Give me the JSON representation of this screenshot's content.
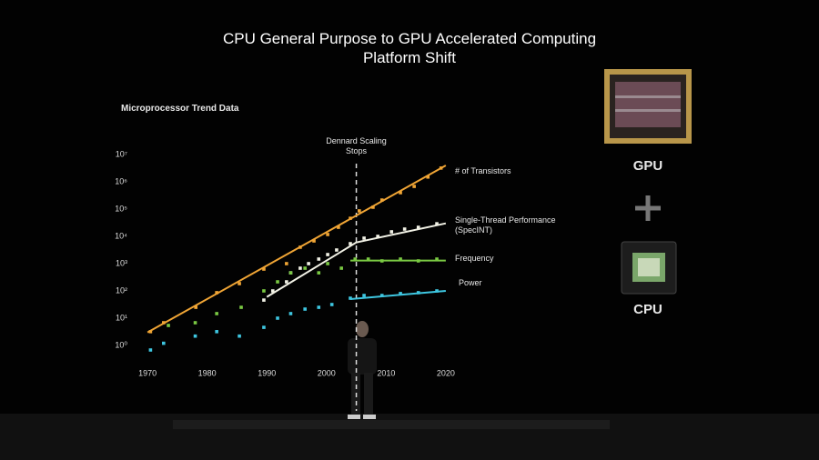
{
  "chart_data": {
    "type": "scatter",
    "title": "CPU General Purpose to GPU Accelerated Computing Platform Shift",
    "subtitle": "Microprocessor Trend Data",
    "annotation": "Dennard Scaling Stops",
    "annotation_x": 2005,
    "log_y": true,
    "xlim": [
      1968,
      2022
    ],
    "xticks": [
      1970,
      1980,
      1990,
      2000,
      2010,
      2020
    ],
    "ylim": [
      0.5,
      20000000
    ],
    "yticks": [
      {
        "value": 1,
        "label": "10⁰"
      },
      {
        "value": 10,
        "label": "10¹"
      },
      {
        "value": 100,
        "label": "10²"
      },
      {
        "value": 1000,
        "label": "10³"
      },
      {
        "value": 10000,
        "label": "10⁴"
      },
      {
        "value": 100000,
        "label": "10⁵"
      },
      {
        "value": 1000000,
        "label": "10⁶"
      },
      {
        "value": 10000000,
        "label": "10⁷"
      }
    ],
    "series": [
      {
        "name": "# of Transistors",
        "color": "#f0a535",
        "x": [
          1970.5,
          1972.7,
          1978.1,
          1981.6,
          1985.4,
          1989.5,
          1993.3,
          1995.6,
          1997.9,
          2000.2,
          2002,
          2004,
          2005.5,
          2007.8,
          2009.3,
          2012.4,
          2014.7,
          2017,
          2019.2
        ],
        "values": [
          3.2,
          6.8,
          25,
          86,
          185,
          630,
          1000,
          4000,
          6800,
          11700,
          21500,
          46000,
          86000,
          117000,
          215000,
          400000,
          680000,
          1500000,
          3200000
        ],
        "fit_x": [
          1970,
          2020
        ],
        "fit_values": [
          3,
          4000000
        ]
      },
      {
        "name": "Single-Thread Performance (SpecINT)",
        "color": "#f2f2e6",
        "x": [
          1989.5,
          1991,
          1993.3,
          1994,
          1995.6,
          1997,
          1998.7,
          2000.2,
          2001.7,
          2004,
          2006.3,
          2008.6,
          2010.9,
          2013.1,
          2015.4,
          2018.5
        ],
        "values": [
          46,
          100,
          215,
          460,
          680,
          1000,
          1470,
          2150,
          3160,
          5400,
          8600,
          10000,
          14700,
          18500,
          21500,
          29000
        ],
        "fit_x": [
          1990,
          2005,
          2020
        ],
        "fit_values": [
          60,
          6000,
          30000
        ]
      },
      {
        "name": "Frequency",
        "color": "#7ac943",
        "x": [
          1973.5,
          1978,
          1981.6,
          1985.7,
          1989.5,
          1991.8,
          1994,
          1996.4,
          1998.7,
          2000.2,
          2002.5,
          2004.8,
          2007,
          2009.3,
          2012.4,
          2015.4,
          2018.5
        ],
        "values": [
          5.4,
          6.8,
          14.7,
          25,
          100,
          215,
          460,
          680,
          460,
          1000,
          680,
          1470,
          1470,
          1260,
          1470,
          1260,
          1470
        ],
        "fit_x": [
          2004,
          2020
        ],
        "fit_values": [
          1300,
          1300
        ]
      },
      {
        "name": "Power",
        "color": "#3ec6e0",
        "x": [
          1970.5,
          1972.7,
          1978,
          1981.6,
          1985.4,
          1989.5,
          1991.8,
          1994,
          1996.4,
          1998.7,
          2000.9,
          2004,
          2006.3,
          2009.3,
          2012.4,
          2015.4,
          2018.5
        ],
        "values": [
          0.68,
          1.2,
          2.2,
          3.2,
          2.2,
          4.6,
          10,
          14.7,
          21.5,
          25,
          31.6,
          54,
          68,
          68,
          80,
          86,
          100
        ],
        "fit_x": [
          2004,
          2020
        ],
        "fit_values": [
          50,
          100
        ]
      }
    ],
    "gpu_label": "GPU",
    "cpu_label": "CPU"
  }
}
